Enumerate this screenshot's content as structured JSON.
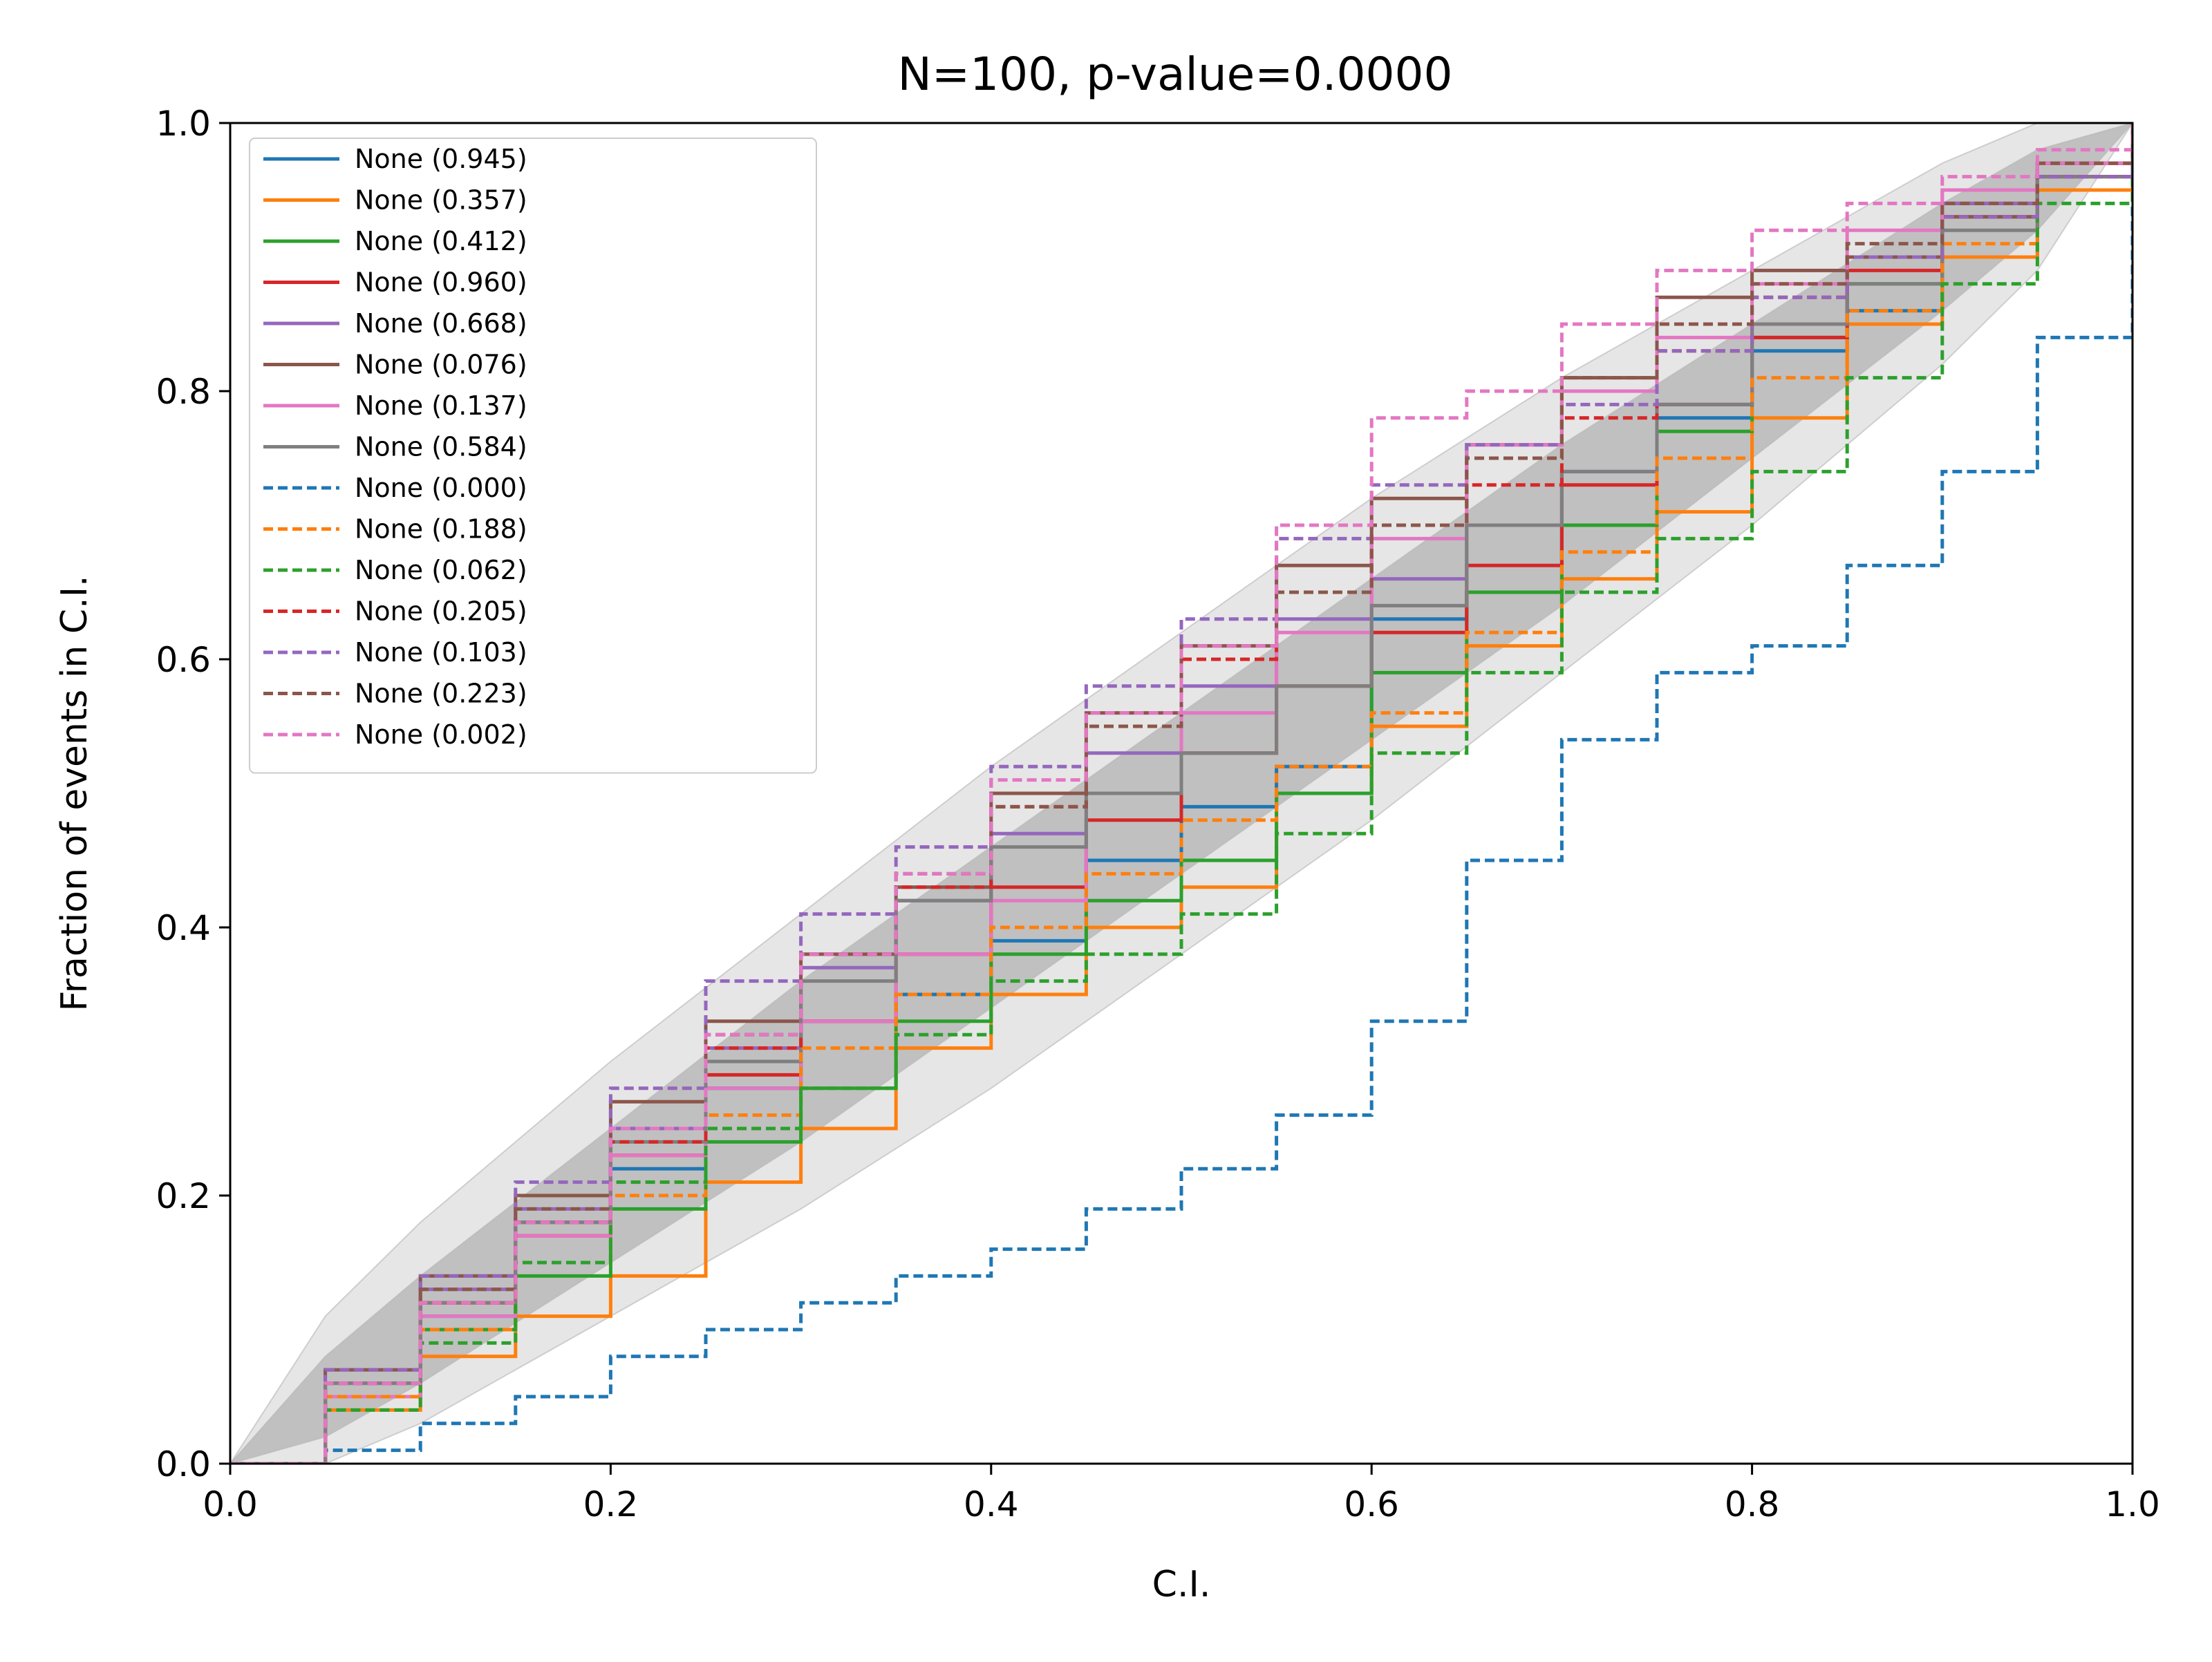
{
  "chart_data": {
    "type": "line",
    "title": "N=100, p-value=0.0000",
    "xlabel": "C.I.",
    "ylabel": "Fraction of events in C.I.",
    "xlim": [
      0,
      1
    ],
    "ylim": [
      0,
      1
    ],
    "grid": false,
    "legend_position": "top-left",
    "x_ticks": [
      "0.0",
      "0.2",
      "0.4",
      "0.6",
      "0.8",
      "1.0"
    ],
    "y_ticks": [
      "0.0",
      "0.2",
      "0.4",
      "0.6",
      "0.8",
      "1.0"
    ],
    "confidence_bands": [
      {
        "level": "outer",
        "color": "#e6e6e6",
        "x": [
          0,
          0.05,
          0.1,
          0.2,
          0.3,
          0.4,
          0.5,
          0.6,
          0.7,
          0.8,
          0.9,
          0.95,
          1.0
        ],
        "lower": [
          0,
          0.0,
          0.03,
          0.11,
          0.19,
          0.28,
          0.38,
          0.48,
          0.59,
          0.7,
          0.82,
          0.89,
          1.0
        ],
        "upper": [
          0,
          0.11,
          0.18,
          0.3,
          0.41,
          0.52,
          0.62,
          0.72,
          0.81,
          0.89,
          0.97,
          1.0,
          1.0
        ]
      },
      {
        "level": "inner",
        "color": "#c0c0c0",
        "x": [
          0,
          0.05,
          0.1,
          0.2,
          0.3,
          0.4,
          0.5,
          0.6,
          0.7,
          0.8,
          0.9,
          0.95,
          1.0
        ],
        "lower": [
          0,
          0.02,
          0.06,
          0.15,
          0.24,
          0.34,
          0.44,
          0.54,
          0.64,
          0.75,
          0.86,
          0.92,
          1.0
        ],
        "upper": [
          0,
          0.08,
          0.14,
          0.25,
          0.36,
          0.46,
          0.56,
          0.66,
          0.76,
          0.85,
          0.94,
          0.98,
          1.0
        ]
      }
    ],
    "series": [
      {
        "name": "None (0.945)",
        "color": "#1f77b4",
        "dash": false,
        "x": [
          0,
          0.05,
          0.1,
          0.15,
          0.2,
          0.25,
          0.3,
          0.35,
          0.4,
          0.45,
          0.5,
          0.55,
          0.6,
          0.65,
          0.7,
          0.75,
          0.8,
          0.85,
          0.9,
          0.95,
          1.0
        ],
        "y": [
          0,
          0.05,
          0.11,
          0.18,
          0.22,
          0.28,
          0.33,
          0.35,
          0.39,
          0.45,
          0.49,
          0.52,
          0.63,
          0.65,
          0.7,
          0.78,
          0.83,
          0.86,
          0.9,
          0.96,
          1.0
        ]
      },
      {
        "name": "None (0.357)",
        "color": "#ff7f0e",
        "dash": false,
        "x": [
          0,
          0.05,
          0.1,
          0.15,
          0.2,
          0.25,
          0.3,
          0.35,
          0.4,
          0.45,
          0.5,
          0.55,
          0.6,
          0.65,
          0.7,
          0.75,
          0.8,
          0.85,
          0.9,
          0.95,
          1.0
        ],
        "y": [
          0,
          0.04,
          0.08,
          0.11,
          0.14,
          0.21,
          0.25,
          0.31,
          0.35,
          0.4,
          0.43,
          0.5,
          0.55,
          0.61,
          0.66,
          0.71,
          0.78,
          0.85,
          0.9,
          0.95,
          1.0
        ]
      },
      {
        "name": "None (0.412)",
        "color": "#2ca02c",
        "dash": false,
        "x": [
          0,
          0.05,
          0.1,
          0.15,
          0.2,
          0.25,
          0.3,
          0.35,
          0.4,
          0.45,
          0.5,
          0.55,
          0.6,
          0.65,
          0.7,
          0.75,
          0.8,
          0.85,
          0.9,
          0.95,
          1.0
        ],
        "y": [
          0,
          0.05,
          0.1,
          0.14,
          0.19,
          0.24,
          0.28,
          0.33,
          0.38,
          0.42,
          0.45,
          0.5,
          0.59,
          0.65,
          0.7,
          0.77,
          0.84,
          0.88,
          0.93,
          0.97,
          1.0
        ]
      },
      {
        "name": "None (0.960)",
        "color": "#d62728",
        "dash": false,
        "x": [
          0,
          0.05,
          0.1,
          0.15,
          0.2,
          0.25,
          0.3,
          0.35,
          0.4,
          0.45,
          0.5,
          0.55,
          0.6,
          0.65,
          0.7,
          0.75,
          0.8,
          0.85,
          0.9,
          0.95,
          1.0
        ],
        "y": [
          0,
          0.05,
          0.12,
          0.17,
          0.23,
          0.29,
          0.33,
          0.38,
          0.43,
          0.48,
          0.53,
          0.58,
          0.62,
          0.67,
          0.73,
          0.79,
          0.84,
          0.89,
          0.94,
          0.97,
          1.0
        ]
      },
      {
        "name": "None (0.668)",
        "color": "#9467bd",
        "dash": false,
        "x": [
          0,
          0.05,
          0.1,
          0.15,
          0.2,
          0.25,
          0.3,
          0.35,
          0.4,
          0.45,
          0.5,
          0.55,
          0.6,
          0.65,
          0.7,
          0.75,
          0.8,
          0.85,
          0.9,
          0.95,
          1.0
        ],
        "y": [
          0,
          0.06,
          0.13,
          0.19,
          0.25,
          0.31,
          0.37,
          0.42,
          0.47,
          0.53,
          0.58,
          0.63,
          0.66,
          0.7,
          0.74,
          0.79,
          0.85,
          0.9,
          0.94,
          0.97,
          1.0
        ]
      },
      {
        "name": "None (0.076)",
        "color": "#8c564b",
        "dash": false,
        "x": [
          0,
          0.05,
          0.1,
          0.15,
          0.2,
          0.25,
          0.3,
          0.35,
          0.4,
          0.45,
          0.5,
          0.55,
          0.6,
          0.65,
          0.7,
          0.75,
          0.8,
          0.85,
          0.9,
          0.95,
          1.0
        ],
        "y": [
          0,
          0.07,
          0.14,
          0.2,
          0.27,
          0.33,
          0.38,
          0.43,
          0.5,
          0.56,
          0.61,
          0.67,
          0.72,
          0.76,
          0.81,
          0.87,
          0.89,
          0.9,
          0.93,
          0.96,
          1.0
        ]
      },
      {
        "name": "None (0.137)",
        "color": "#e377c2",
        "dash": false,
        "x": [
          0,
          0.05,
          0.1,
          0.15,
          0.2,
          0.25,
          0.3,
          0.35,
          0.4,
          0.45,
          0.5,
          0.55,
          0.6,
          0.65,
          0.7,
          0.75,
          0.8,
          0.85,
          0.9,
          0.95,
          1.0
        ],
        "y": [
          0,
          0.05,
          0.11,
          0.17,
          0.23,
          0.28,
          0.33,
          0.38,
          0.42,
          0.5,
          0.56,
          0.62,
          0.69,
          0.76,
          0.8,
          0.84,
          0.88,
          0.92,
          0.95,
          0.97,
          1.0
        ]
      },
      {
        "name": "None (0.584)",
        "color": "#7f7f7f",
        "dash": false,
        "x": [
          0,
          0.05,
          0.1,
          0.15,
          0.2,
          0.25,
          0.3,
          0.35,
          0.4,
          0.45,
          0.5,
          0.55,
          0.6,
          0.65,
          0.7,
          0.75,
          0.8,
          0.85,
          0.9,
          0.95,
          1.0
        ],
        "y": [
          0,
          0.06,
          0.12,
          0.18,
          0.24,
          0.3,
          0.36,
          0.42,
          0.46,
          0.5,
          0.53,
          0.58,
          0.64,
          0.7,
          0.74,
          0.79,
          0.85,
          0.88,
          0.92,
          0.96,
          1.0
        ]
      },
      {
        "name": "None (0.000)",
        "color": "#1f77b4",
        "dash": true,
        "x": [
          0,
          0.05,
          0.1,
          0.15,
          0.2,
          0.25,
          0.3,
          0.35,
          0.4,
          0.45,
          0.5,
          0.55,
          0.6,
          0.65,
          0.7,
          0.75,
          0.8,
          0.85,
          0.9,
          0.95,
          1.0
        ],
        "y": [
          0,
          0.01,
          0.03,
          0.05,
          0.08,
          0.1,
          0.12,
          0.14,
          0.16,
          0.19,
          0.22,
          0.26,
          0.33,
          0.45,
          0.54,
          0.59,
          0.61,
          0.67,
          0.74,
          0.84,
          1.0
        ]
      },
      {
        "name": "None (0.188)",
        "color": "#ff7f0e",
        "dash": true,
        "x": [
          0,
          0.05,
          0.1,
          0.15,
          0.2,
          0.25,
          0.3,
          0.35,
          0.4,
          0.45,
          0.5,
          0.55,
          0.6,
          0.65,
          0.7,
          0.75,
          0.8,
          0.85,
          0.9,
          0.95,
          1.0
        ],
        "y": [
          0,
          0.05,
          0.1,
          0.15,
          0.2,
          0.26,
          0.31,
          0.35,
          0.4,
          0.44,
          0.48,
          0.52,
          0.56,
          0.62,
          0.68,
          0.75,
          0.81,
          0.86,
          0.91,
          0.95,
          1.0
        ]
      },
      {
        "name": "None (0.062)",
        "color": "#2ca02c",
        "dash": true,
        "x": [
          0,
          0.05,
          0.1,
          0.15,
          0.2,
          0.25,
          0.3,
          0.35,
          0.4,
          0.45,
          0.5,
          0.55,
          0.6,
          0.65,
          0.7,
          0.75,
          0.8,
          0.85,
          0.9,
          0.95,
          1.0
        ],
        "y": [
          0,
          0.04,
          0.09,
          0.15,
          0.21,
          0.25,
          0.28,
          0.32,
          0.36,
          0.38,
          0.41,
          0.47,
          0.53,
          0.59,
          0.65,
          0.69,
          0.74,
          0.81,
          0.88,
          0.94,
          1.0
        ]
      },
      {
        "name": "None (0.205)",
        "color": "#d62728",
        "dash": true,
        "x": [
          0,
          0.05,
          0.1,
          0.15,
          0.2,
          0.25,
          0.3,
          0.35,
          0.4,
          0.45,
          0.5,
          0.55,
          0.6,
          0.65,
          0.7,
          0.75,
          0.8,
          0.85,
          0.9,
          0.95,
          1.0
        ],
        "y": [
          0,
          0.06,
          0.12,
          0.18,
          0.24,
          0.31,
          0.38,
          0.43,
          0.49,
          0.55,
          0.6,
          0.65,
          0.7,
          0.73,
          0.78,
          0.83,
          0.87,
          0.9,
          0.93,
          0.96,
          1.0
        ]
      },
      {
        "name": "None (0.103)",
        "color": "#9467bd",
        "dash": true,
        "x": [
          0,
          0.05,
          0.1,
          0.15,
          0.2,
          0.25,
          0.3,
          0.35,
          0.4,
          0.45,
          0.5,
          0.55,
          0.6,
          0.65,
          0.7,
          0.75,
          0.8,
          0.85,
          0.9,
          0.95,
          1.0
        ],
        "y": [
          0,
          0.07,
          0.14,
          0.21,
          0.28,
          0.36,
          0.41,
          0.46,
          0.52,
          0.58,
          0.63,
          0.69,
          0.73,
          0.76,
          0.79,
          0.83,
          0.87,
          0.9,
          0.93,
          0.96,
          1.0
        ]
      },
      {
        "name": "None (0.223)",
        "color": "#8c564b",
        "dash": true,
        "x": [
          0,
          0.05,
          0.1,
          0.15,
          0.2,
          0.25,
          0.3,
          0.35,
          0.4,
          0.45,
          0.5,
          0.55,
          0.6,
          0.65,
          0.7,
          0.75,
          0.8,
          0.85,
          0.9,
          0.95,
          1.0
        ],
        "y": [
          0,
          0.06,
          0.13,
          0.19,
          0.25,
          0.32,
          0.38,
          0.44,
          0.49,
          0.55,
          0.61,
          0.65,
          0.7,
          0.75,
          0.81,
          0.85,
          0.88,
          0.91,
          0.94,
          0.97,
          1.0
        ]
      },
      {
        "name": "None (0.002)",
        "color": "#e377c2",
        "dash": true,
        "x": [
          0,
          0.05,
          0.1,
          0.15,
          0.2,
          0.25,
          0.3,
          0.35,
          0.4,
          0.45,
          0.5,
          0.55,
          0.6,
          0.65,
          0.7,
          0.75,
          0.8,
          0.85,
          0.9,
          0.95,
          1.0
        ],
        "y": [
          0,
          0.06,
          0.12,
          0.18,
          0.25,
          0.32,
          0.38,
          0.44,
          0.51,
          0.56,
          0.61,
          0.7,
          0.78,
          0.8,
          0.85,
          0.89,
          0.92,
          0.94,
          0.96,
          0.98,
          1.0
        ]
      }
    ]
  }
}
